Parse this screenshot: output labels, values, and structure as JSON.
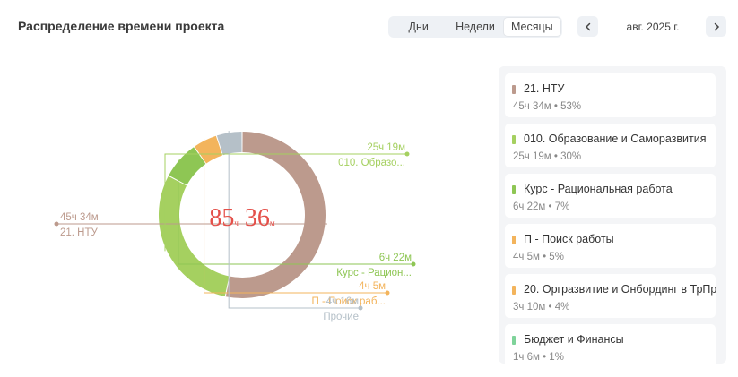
{
  "header": {
    "title": "Распределение времени проекта",
    "tabs": [
      {
        "label": "Дни",
        "active": false
      },
      {
        "label": "Недели",
        "active": false
      },
      {
        "label": "Месяцы",
        "active": true
      }
    ],
    "prev_icon": "chevron-left-icon",
    "next_icon": "chevron-right-icon",
    "period": "авг. 2025 г."
  },
  "center": {
    "hours": "85",
    "hours_unit": "ч",
    "minutes": "36",
    "minutes_unit": "м",
    "color": "#e4504a"
  },
  "chart_data": {
    "type": "pie",
    "variant": "donut",
    "total_label": "85ч 36м",
    "slices": [
      {
        "label": "21. НТУ",
        "value_label": "45ч 34м",
        "percent_label": "53%",
        "value": 45.57,
        "color": "#bc9a8d"
      },
      {
        "label": "010. Образование и Саморазвития",
        "callout_label": "010. Образо...",
        "value_label": "25ч 19м",
        "percent_label": "30%",
        "value": 25.32,
        "color": "#a5d060"
      },
      {
        "label": "Курс - Рациональная работа",
        "callout_label": "Курс - Рацион...",
        "value_label": "6ч 22м",
        "percent_label": "7%",
        "value": 6.37,
        "color": "#8ec654"
      },
      {
        "label": "П - Поиск работы",
        "callout_label": "П - Поиск раб...",
        "value_label": "4ч 5м",
        "percent_label": "5%",
        "value": 4.08,
        "color": "#f3b45c"
      },
      {
        "label": "Прочие",
        "callout_label": "Прочие",
        "value_label": "4ч 16м",
        "value": 4.27,
        "color": "#b5c0c8"
      }
    ]
  },
  "legend": [
    {
      "name": "21. НТУ",
      "sub": "45ч 34м • 53%",
      "color": "#bc9a8d"
    },
    {
      "name": "010. Образование и Саморазвития",
      "sub": "25ч 19м • 30%",
      "color": "#a5d060"
    },
    {
      "name": "Курс - Рациональная работа",
      "sub": "6ч 22м • 7%",
      "color": "#8ec654"
    },
    {
      "name": "П - Поиск работы",
      "sub": "4ч 5м • 5%",
      "color": "#f3b45c"
    },
    {
      "name": "20. Оргразвитие и Онбординг в ТрПр",
      "sub": "3ч 10м • 4%",
      "color": "#f3b45c"
    },
    {
      "name": "Бюджет и Финансы",
      "sub": "1ч 6м • 1%",
      "color": "#7fd39a"
    }
  ]
}
